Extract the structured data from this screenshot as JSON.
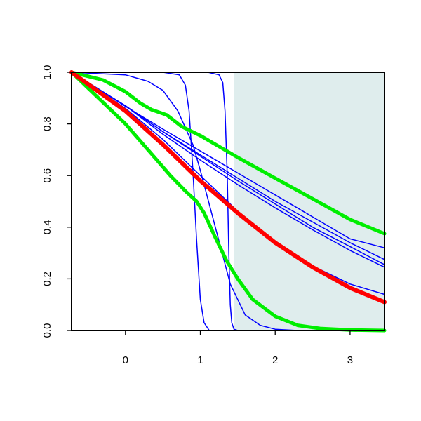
{
  "chart_data": {
    "type": "line",
    "xlim": [
      -0.72,
      3.46
    ],
    "ylim": [
      0.0,
      1.0
    ],
    "x_ticks": [
      0,
      1,
      2,
      3
    ],
    "y_ticks": [
      0.0,
      0.2,
      0.4,
      0.6,
      0.8,
      1.0
    ],
    "x_tick_labels": [
      "0",
      "1",
      "2",
      "3"
    ],
    "y_tick_labels": [
      "0.0",
      "0.2",
      "0.4",
      "0.6",
      "0.8",
      "1.0"
    ],
    "grid": false,
    "shaded_region": {
      "x": [
        1.45,
        3.46
      ],
      "y": [
        0.0,
        1.0
      ],
      "color": "#dfeded"
    },
    "series": [
      {
        "color": "#0000ff",
        "width": 1.5,
        "x": [
          -0.72,
          0.0,
          0.5,
          1.0,
          1.5,
          2.0,
          2.5,
          3.0,
          3.46
        ],
        "y": [
          1.0,
          0.868,
          0.78,
          0.695,
          0.61,
          0.525,
          0.44,
          0.355,
          0.32
        ]
      },
      {
        "color": "#0000ff",
        "width": 1.5,
        "x": [
          -0.72,
          0.0,
          0.5,
          1.0,
          1.5,
          2.0,
          2.5,
          3.0,
          3.46
        ],
        "y": [
          1.0,
          0.87,
          0.77,
          0.68,
          0.59,
          0.5,
          0.42,
          0.34,
          0.275
        ]
      },
      {
        "color": "#0000ff",
        "width": 1.5,
        "x": [
          -0.72,
          0.0,
          0.5,
          1.0,
          1.5,
          2.0,
          2.5,
          3.0,
          3.46
        ],
        "y": [
          1.0,
          0.87,
          0.76,
          0.66,
          0.565,
          0.475,
          0.39,
          0.31,
          0.245
        ]
      },
      {
        "color": "#0000ff",
        "width": 1.5,
        "x": [
          -0.72,
          0.0,
          0.5,
          1.0,
          1.5,
          2.0,
          2.5,
          3.0,
          3.46
        ],
        "y": [
          1.0,
          0.87,
          0.77,
          0.675,
          0.58,
          0.49,
          0.4,
          0.325,
          0.255
        ]
      },
      {
        "color": "#0000ff",
        "width": 1.5,
        "x": [
          -0.72,
          0.0,
          0.5,
          1.0,
          1.4,
          1.6,
          2.0,
          2.5,
          3.0,
          3.46
        ],
        "y": [
          1.0,
          0.86,
          0.74,
          0.6,
          0.49,
          0.43,
          0.34,
          0.25,
          0.18,
          0.14
        ]
      },
      {
        "color": "#0000ff",
        "width": 1.5,
        "x": [
          -0.72,
          0.0,
          0.3,
          0.5,
          0.7,
          0.9,
          1.0,
          1.2,
          1.4,
          1.6,
          1.8,
          2.0,
          2.3,
          3.46
        ],
        "y": [
          1.0,
          0.99,
          0.965,
          0.93,
          0.85,
          0.72,
          0.62,
          0.4,
          0.18,
          0.06,
          0.02,
          0.005,
          0.0,
          0.0
        ]
      },
      {
        "color": "#0000ff",
        "width": 1.5,
        "x": [
          -0.72,
          0.5,
          0.72,
          0.8,
          0.85,
          0.9,
          0.95,
          1.0,
          1.05,
          1.12,
          1.3,
          3.46
        ],
        "y": [
          1.0,
          1.0,
          0.99,
          0.95,
          0.85,
          0.62,
          0.35,
          0.12,
          0.03,
          0.0,
          0.0,
          0.0
        ]
      },
      {
        "color": "#0000ff",
        "width": 1.5,
        "x": [
          -0.72,
          1.1,
          1.25,
          1.3,
          1.33,
          1.36,
          1.38,
          1.4,
          1.42,
          1.45,
          1.5,
          3.46
        ],
        "y": [
          1.0,
          1.0,
          0.99,
          0.96,
          0.85,
          0.6,
          0.3,
          0.1,
          0.03,
          0.005,
          0.0,
          0.0
        ]
      },
      {
        "color": "#00ee00",
        "width": 5,
        "x": [
          -0.72,
          -0.3,
          0.0,
          0.2,
          0.35,
          0.55,
          0.75,
          1.0,
          1.5,
          2.0,
          2.5,
          3.0,
          3.46
        ],
        "y": [
          1.0,
          0.97,
          0.925,
          0.88,
          0.855,
          0.835,
          0.79,
          0.755,
          0.67,
          0.59,
          0.51,
          0.43,
          0.375
        ]
      },
      {
        "color": "#00ee00",
        "width": 5,
        "x": [
          -0.72,
          0.0,
          0.3,
          0.6,
          0.8,
          0.95,
          1.05,
          1.2,
          1.35,
          1.5,
          1.7,
          2.0,
          2.3,
          2.6,
          3.0,
          3.46
        ],
        "y": [
          1.0,
          0.8,
          0.7,
          0.6,
          0.54,
          0.5,
          0.455,
          0.36,
          0.27,
          0.2,
          0.12,
          0.055,
          0.02,
          0.008,
          0.002,
          0.0
        ]
      },
      {
        "color": "#ff0000",
        "width": 6,
        "x": [
          -0.72,
          0.0,
          0.5,
          1.0,
          1.5,
          2.0,
          2.5,
          3.0,
          3.46
        ],
        "y": [
          1.0,
          0.85,
          0.72,
          0.58,
          0.455,
          0.34,
          0.245,
          0.165,
          0.11
        ]
      }
    ]
  }
}
